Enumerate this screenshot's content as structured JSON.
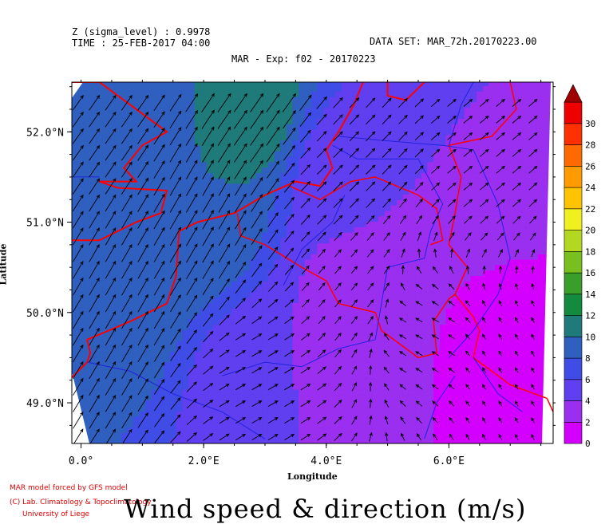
{
  "header": {
    "z_line": "Z (sigma_level) : 0.9978",
    "time_line": "TIME : 25-FEB-2017 04:00",
    "dataset_line": "DATA SET: MAR_72h.20170223.00",
    "experiment_line": "MAR - Exp: f02 - 20170223"
  },
  "footer": {
    "credit_1": "MAR model forced by GFS model",
    "credit_2": "(C) Lab. Climatology & Topoclimatology",
    "credit_3": "University of Liege",
    "big_title": "Wind speed & direction (m/s)"
  },
  "colors": {
    "border": "#ff0000",
    "river": "#2222dd",
    "arrow": "#000000"
  },
  "chart_data": {
    "type": "heatmap",
    "title": "Wind speed & direction (m/s)",
    "xlabel": "Longitude",
    "ylabel": "Latitude",
    "xlim": [
      -0.15,
      7.7
    ],
    "ylim": [
      48.55,
      52.55
    ],
    "x_ticks": [
      {
        "value": 0,
        "label": "0.0°"
      },
      {
        "value": 2,
        "label": "2.0°E"
      },
      {
        "value": 4,
        "label": "4.0°E"
      },
      {
        "value": 6,
        "label": "6.0°E"
      }
    ],
    "y_ticks": [
      {
        "value": 49,
        "label": "49.0°N"
      },
      {
        "value": 50,
        "label": "50.0°N"
      },
      {
        "value": 51,
        "label": "51.0°N"
      },
      {
        "value": 52,
        "label": "52.0°N"
      }
    ],
    "colorbar": {
      "min": 0,
      "max": 30,
      "step": 2,
      "labels": [
        "0",
        "2",
        "4",
        "6",
        "8",
        "10",
        "12",
        "14",
        "16",
        "18",
        "20",
        "22",
        "24",
        "26",
        "28",
        "30"
      ],
      "colors": [
        "#d400ff",
        "#9a2ff0",
        "#5f3ff0",
        "#3f4ce6",
        "#2f5fbf",
        "#1f7a7a",
        "#138a3d",
        "#3a9e2a",
        "#78c020",
        "#b4d820",
        "#f0f020",
        "#ffc400",
        "#ff9a00",
        "#ff6a00",
        "#ff3000",
        "#ee0000"
      ],
      "extend_color": "#a00000"
    },
    "wind_field": {
      "description_points": [
        {
          "lon": 0.5,
          "lat": 52.2,
          "speed": 8,
          "dir_to_deg": 35
        },
        {
          "lon": 2.8,
          "lat": 52.3,
          "speed": 11,
          "dir_to_deg": 35
        },
        {
          "lon": 2.0,
          "lat": 51.2,
          "speed": 10,
          "dir_to_deg": 30
        },
        {
          "lon": 0.6,
          "lat": 50.3,
          "speed": 9,
          "dir_to_deg": 30
        },
        {
          "lon": 4.2,
          "lat": 51.5,
          "speed": 5,
          "dir_to_deg": 45
        },
        {
          "lon": 6.5,
          "lat": 51.8,
          "speed": 4,
          "dir_to_deg": 50
        },
        {
          "lon": 3.0,
          "lat": 49.2,
          "speed": 4,
          "dir_to_deg": 60
        },
        {
          "lon": 5.5,
          "lat": 49.8,
          "speed": 2,
          "dir_to_deg": 300
        },
        {
          "lon": 7.0,
          "lat": 49.5,
          "speed": 1,
          "dir_to_deg": 330
        },
        {
          "lon": 4.5,
          "lat": 50.3,
          "speed": 3,
          "dir_to_deg": 40
        }
      ]
    },
    "grid": false
  }
}
